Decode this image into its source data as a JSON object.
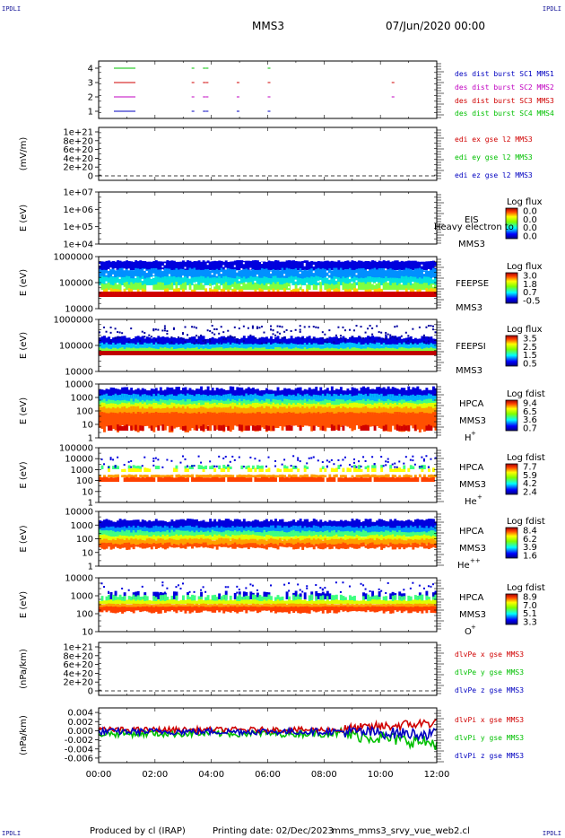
{
  "corners": {
    "tl": "IPDLI",
    "tr": "IPDLI",
    "bl": "IPDLI",
    "br": "IPDLI"
  },
  "header": {
    "title": "MMS3",
    "datetime": "07/Jun/2020 00:00"
  },
  "footer": {
    "produced_by": "Produced by cl (IRAP)",
    "printing_date": "Printing date: 02/Dec/2023",
    "script": "mms_mms3_srvy_vue_web2.cl"
  },
  "x_ticks": [
    "00:00",
    "02:00",
    "04:00",
    "06:00",
    "08:00",
    "10:00",
    "12:00"
  ],
  "colors": {
    "red": "#d00000",
    "green": "#00c000",
    "blue": "#0000c0",
    "magenta": "#c000c0"
  },
  "chart_data": [
    {
      "type": "scatter",
      "panel": "burst",
      "yticks": [
        "1",
        "2",
        "3",
        "4"
      ],
      "legend": [
        "des dist burst SC1 MMS1",
        "des dist burst SC2 MMS2",
        "des dist burst SC3 MMS3",
        "des dist burst SC4 MMS4"
      ],
      "legend_colors": [
        "#0000c0",
        "#c000c0",
        "#d00000",
        "#00c000"
      ],
      "series": [
        {
          "level": 4,
          "color": "#00c000",
          "t": [
            3.3,
            3.7,
            3.8,
            6.0
          ]
        },
        {
          "level": 3,
          "color": "#d00000",
          "t": [
            3.3,
            3.7,
            3.8,
            4.9,
            6.0,
            10.4
          ]
        },
        {
          "level": 2,
          "color": "#c000c0",
          "t": [
            3.3,
            3.7,
            3.8,
            4.9,
            6.0,
            10.4
          ]
        },
        {
          "level": 1,
          "color": "#0000c0",
          "t": [
            3.3,
            3.7,
            3.8,
            4.9,
            6.0
          ]
        }
      ]
    },
    {
      "type": "line",
      "panel": "edi",
      "ylabel": "(mV/m)",
      "yticks": [
        "1e+21",
        "8e+20",
        "6e+20",
        "4e+20",
        "2e+20",
        "0"
      ],
      "legend": [
        "edi ex gse l2 MMS3",
        "edi ey gse l2 MMS3",
        "edi ez gse l2 MMS3"
      ],
      "legend_colors": [
        "#d00000",
        "#00c000",
        "#0000c0"
      ]
    },
    {
      "type": "heatmap",
      "panel": "eis",
      "ylabel": "E (eV)",
      "yticks": [
        "1e+07",
        "1e+06",
        "1e+05",
        "1e+04"
      ],
      "labels": [
        "EIS",
        "MMS3"
      ],
      "overlay": "Heavy electron to",
      "cbar": {
        "title": "Log flux",
        "ticks": [
          "0.0",
          "0.0",
          "0.0",
          "0.0"
        ]
      }
    },
    {
      "type": "heatmap",
      "panel": "feepse",
      "ylabel": "E (eV)",
      "yticks": [
        "1000000",
        "100000",
        "10000"
      ],
      "labels": [
        "FEEPSE",
        "MMS3"
      ],
      "cbar": {
        "title": "Log flux",
        "ticks": [
          "3.0",
          "1.8",
          "0.7",
          "-0.5"
        ]
      }
    },
    {
      "type": "heatmap",
      "panel": "feepsi",
      "ylabel": "E (eV)",
      "yticks": [
        "1000000",
        "100000",
        "10000"
      ],
      "labels": [
        "FEEPSI",
        "MMS3"
      ],
      "cbar": {
        "title": "Log flux",
        "ticks": [
          "3.5",
          "2.5",
          "1.5",
          "0.5"
        ]
      }
    },
    {
      "type": "heatmap",
      "panel": "hpca_h",
      "ylabel": "E (eV)",
      "yticks": [
        "10000",
        "1000",
        "100",
        "10",
        "1"
      ],
      "labels": [
        "HPCA",
        "MMS3"
      ],
      "species": "H",
      "charge": "+",
      "cbar": {
        "title": "Log fdist",
        "ticks": [
          "9.4",
          "6.5",
          "3.6",
          "0.7"
        ]
      }
    },
    {
      "type": "heatmap",
      "panel": "hpca_he",
      "ylabel": "E (eV)",
      "yticks": [
        "100000",
        "10000",
        "1000",
        "100",
        "10",
        "1"
      ],
      "labels": [
        "HPCA",
        "MMS3"
      ],
      "species": "He",
      "charge": "+",
      "cbar": {
        "title": "Log fdist",
        "ticks": [
          "7.7",
          "5.9",
          "4.2",
          "2.4"
        ]
      }
    },
    {
      "type": "heatmap",
      "panel": "hpca_hepp",
      "ylabel": "E (eV)",
      "yticks": [
        "10000",
        "1000",
        "100",
        "10",
        "1"
      ],
      "labels": [
        "HPCA",
        "MMS3"
      ],
      "species": "He",
      "charge": "++",
      "cbar": {
        "title": "Log fdist",
        "ticks": [
          "8.4",
          "6.2",
          "3.9",
          "1.6"
        ]
      }
    },
    {
      "type": "heatmap",
      "panel": "hpca_o",
      "ylabel": "E (eV)",
      "yticks": [
        "10000",
        "1000",
        "100",
        "10"
      ],
      "labels": [
        "HPCA",
        "MMS3"
      ],
      "species": "O",
      "charge": "+",
      "cbar": {
        "title": "Log fdist",
        "ticks": [
          "8.9",
          "7.0",
          "5.1",
          "3.3"
        ]
      }
    },
    {
      "type": "line",
      "panel": "dlvpe",
      "ylabel": "(nPa/km)",
      "yticks": [
        "1e+21",
        "8e+20",
        "6e+20",
        "4e+20",
        "2e+20",
        "0"
      ],
      "legend": [
        "dlvPe x gse MMS3",
        "dlvPe y gse MMS3",
        "dlvPe z gse MMS3"
      ],
      "legend_colors": [
        "#d00000",
        "#00c000",
        "#0000c0"
      ]
    },
    {
      "type": "line",
      "panel": "dlvpi",
      "ylabel": "(nPa/km)",
      "yticks": [
        "0.004",
        "0.002",
        "0.000",
        "-0.002",
        "-0.004",
        "-0.006"
      ],
      "ylim": [
        -0.007,
        0.005
      ],
      "legend": [
        "dlvPi x gse MMS3",
        "dlvPi y gse MMS3",
        "dlvPi z gse MMS3"
      ],
      "legend_colors": [
        "#d00000",
        "#00c000",
        "#0000c0"
      ]
    }
  ]
}
